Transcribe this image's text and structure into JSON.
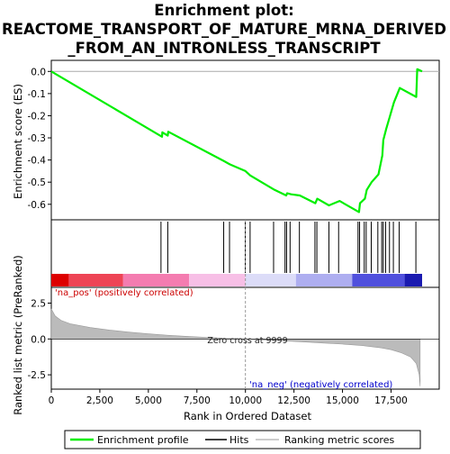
{
  "chart_data": {
    "type": "line",
    "title": "Enrichment plot:",
    "title_lines": [
      "REACTOME_TRANSPORT_OF_MATURE_MRNA_DERIVED",
      "_FROM_AN_INTRONLESS_TRANSCRIPT"
    ],
    "top_panel": {
      "ylabel": "Enrichment score (ES)",
      "ylim": [
        -0.67,
        0.05
      ],
      "yticks": [
        "0.0",
        "-0.1",
        "-0.2",
        "-0.3",
        "-0.4",
        "-0.5",
        "-0.6"
      ],
      "ytick_values": [
        0.0,
        -0.1,
        -0.2,
        -0.3,
        -0.4,
        -0.5,
        -0.6
      ],
      "grid": false,
      "series": [
        {
          "name": "Enrichment profile",
          "color": "#00ee00",
          "x": [
            0,
            5700,
            5720,
            6000,
            6020,
            8900,
            9200,
            10000,
            10250,
            11500,
            12100,
            12150,
            12350,
            12800,
            13600,
            13700,
            14300,
            14850,
            15850,
            15900,
            16150,
            16250,
            16500,
            16850,
            17050,
            17100,
            17250,
            17450,
            17650,
            17950,
            18800,
            18850,
            19100
          ],
          "y": [
            0.0,
            -0.295,
            -0.275,
            -0.29,
            -0.272,
            -0.405,
            -0.42,
            -0.45,
            -0.47,
            -0.535,
            -0.56,
            -0.55,
            -0.555,
            -0.56,
            -0.595,
            -0.575,
            -0.605,
            -0.585,
            -0.635,
            -0.595,
            -0.575,
            -0.535,
            -0.5,
            -0.465,
            -0.38,
            -0.31,
            -0.26,
            -0.2,
            -0.14,
            -0.075,
            -0.115,
            0.01,
            0.0
          ]
        }
      ]
    },
    "hits_panel": {
      "legend_label": "Hits",
      "hit_positions": [
        5650,
        6000,
        8880,
        9180,
        9990,
        10240,
        11450,
        12040,
        12120,
        12300,
        12780,
        13580,
        13680,
        14300,
        14800,
        15800,
        15880,
        16120,
        16220,
        16480,
        16820,
        17020,
        17100,
        17220,
        17420,
        17620,
        17920,
        18780
      ]
    },
    "bottom_panel": {
      "ylabel": "Ranked list metric (PreRanked)",
      "ylim": [
        -3.5,
        3.6
      ],
      "yticks": [
        "2.5",
        "0.0",
        "-2.5"
      ],
      "ytick_values": [
        2.5,
        0.0,
        -2.5
      ],
      "legend_label": "Ranking metric scores",
      "metric_x": [
        0,
        200,
        500,
        1000,
        2000,
        3000,
        4000,
        5000,
        6000,
        7000,
        8000,
        9000,
        9999,
        11000,
        12000,
        13000,
        14000,
        15000,
        16000,
        17000,
        17500,
        18000,
        18500,
        18800,
        18950,
        19000
      ],
      "metric_y": [
        2.1,
        1.6,
        1.3,
        1.05,
        0.8,
        0.62,
        0.48,
        0.36,
        0.26,
        0.18,
        0.11,
        0.05,
        0.0,
        -0.07,
        -0.14,
        -0.21,
        -0.28,
        -0.36,
        -0.46,
        -0.62,
        -0.75,
        -0.95,
        -1.25,
        -1.7,
        -2.5,
        -3.3
      ],
      "zero_cross_label": "Zero cross at 9999",
      "zero_cross": 9999,
      "pos_label": "'na_pos' (positively correlated)",
      "neg_label": "'na_neg' (negatively correlated)"
    },
    "xlabel": "Rank in Ordered Dataset",
    "xlim": [
      0,
      19100
    ],
    "xticks": [
      "0",
      "2,500",
      "5,000",
      "7,500",
      "10,000",
      "12,500",
      "15,000",
      "17,500"
    ],
    "xtick_values": [
      0,
      2500,
      5000,
      7500,
      10000,
      12500,
      15000,
      17500
    ],
    "colors": {
      "profile": "#00ee00",
      "hits": "#000000",
      "metric_fill": "#bbbbbb",
      "pos_label": "#cc0000",
      "neg_label": "#0000cc",
      "zero_line": "#999999"
    },
    "color_bar": [
      {
        "from": 0,
        "to": 900,
        "color": "#dd0000"
      },
      {
        "from": 900,
        "to": 3700,
        "color": "#ee4455"
      },
      {
        "from": 3700,
        "to": 7100,
        "color": "#f47cb0"
      },
      {
        "from": 7100,
        "to": 9999,
        "color": "#f7bfe6"
      },
      {
        "from": 9999,
        "to": 12600,
        "color": "#dcdcf8"
      },
      {
        "from": 12600,
        "to": 15500,
        "color": "#aeaef0"
      },
      {
        "from": 15500,
        "to": 18200,
        "color": "#5050dd"
      },
      {
        "from": 18200,
        "to": 19100,
        "color": "#1a1ab0"
      }
    ],
    "legend": [
      {
        "label": "Enrichment profile",
        "color": "#00ee00"
      },
      {
        "label": "Hits",
        "color": "#000000"
      },
      {
        "label": "Ranking metric scores",
        "color": "#bbbbbb"
      }
    ],
    "legend_position": "bottom"
  }
}
